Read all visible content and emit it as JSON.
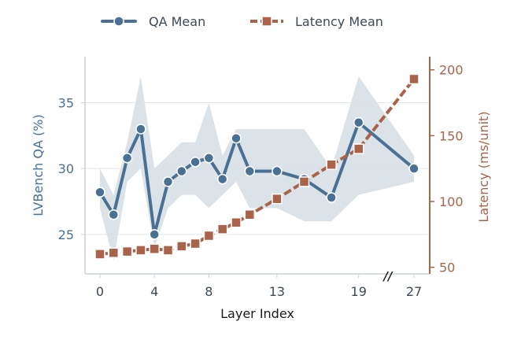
{
  "chart_data": {
    "type": "line",
    "x_ticks": [
      "0",
      "4",
      "8",
      "13",
      "19",
      "27"
    ],
    "xlabel": "Layer Index",
    "ylabel_left": "LVBench QA (%)",
    "ylabel_right": "Latency (ms/unit)",
    "left_ticks": [
      "25",
      "30",
      "35"
    ],
    "right_ticks": [
      "50",
      "100",
      "150",
      "200"
    ],
    "ylim_left": [
      22,
      38.5
    ],
    "ylim_right": [
      45,
      210
    ],
    "axis_break_marker": "//",
    "legend_position": "top-center",
    "series": [
      {
        "name": "QA Mean",
        "axis": "left",
        "color": "#4a7193",
        "marker": "circle",
        "x": [
          0,
          1,
          2,
          3,
          4,
          5,
          6,
          7,
          8,
          9,
          10,
          11,
          13,
          15,
          17,
          19,
          27
        ],
        "values": [
          28.2,
          26.5,
          30.8,
          33.0,
          25.0,
          29.0,
          29.8,
          30.5,
          30.8,
          29.2,
          32.3,
          29.8,
          29.8,
          29.2,
          27.8,
          33.5,
          30.0
        ],
        "band_upper": [
          30.0,
          28.0,
          32.0,
          37.0,
          30.0,
          31.0,
          32.0,
          32.0,
          35.0,
          31.0,
          33.0,
          33.0,
          33.0,
          33.0,
          30.0,
          37.0,
          31.0
        ],
        "band_lower": [
          27.0,
          23.0,
          29.0,
          30.0,
          24.0,
          27.0,
          28.0,
          28.0,
          27.0,
          28.0,
          29.0,
          27.0,
          27.0,
          26.0,
          26.0,
          28.0,
          29.0
        ]
      },
      {
        "name": "Latency Mean",
        "axis": "right",
        "color": "#a8634a",
        "marker": "square",
        "x": [
          0,
          1,
          2,
          3,
          4,
          5,
          6,
          7,
          8,
          9,
          10,
          11,
          13,
          15,
          17,
          19,
          27
        ],
        "values": [
          60,
          61,
          62,
          63,
          64,
          63,
          66,
          68,
          74,
          79,
          84,
          90,
          102,
          115,
          128,
          140,
          193
        ]
      }
    ]
  }
}
